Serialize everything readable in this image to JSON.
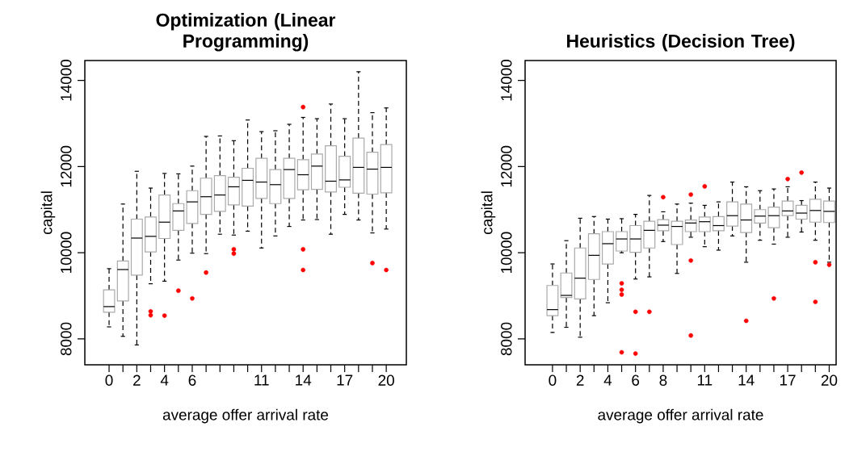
{
  "chart_data": [
    {
      "type": "box",
      "title": "Optimization (Linear Programming)",
      "xlabel": "average offer arrival rate",
      "ylabel": "capital",
      "categories": [
        "0",
        null,
        "2",
        null,
        "4",
        null,
        "6",
        null,
        null,
        null,
        null,
        "11",
        null,
        null,
        "14",
        null,
        null,
        "17",
        null,
        null,
        "20"
      ],
      "ylim": [
        7400,
        14460
      ],
      "yticks": [
        8000,
        10000,
        12000,
        14000
      ],
      "grid": false,
      "series": [
        {
          "color": "#aaaaaa",
          "boxes": [
            {
              "low": 8280,
              "q1": 8620,
              "median": 8750,
              "q3": 9140,
              "high": 9630
            },
            {
              "low": 8060,
              "q1": 8880,
              "median": 9610,
              "q3": 9810,
              "high": 11130
            },
            {
              "low": 7860,
              "q1": 9480,
              "median": 10340,
              "q3": 10780,
              "high": 11890
            },
            {
              "low": 9280,
              "q1": 10020,
              "median": 10380,
              "q3": 10830,
              "high": 11500,
              "outliers": [
                8640,
                8550
              ]
            },
            {
              "low": 9340,
              "q1": 10330,
              "median": 10710,
              "q3": 11340,
              "high": 11840,
              "outliers": [
                8540
              ]
            },
            {
              "low": 9830,
              "q1": 10520,
              "median": 10970,
              "q3": 11140,
              "high": 11830,
              "outliers": [
                9120
              ]
            },
            {
              "low": 9990,
              "q1": 10680,
              "median": 11180,
              "q3": 11440,
              "high": 12010,
              "outliers": [
                8940
              ]
            },
            {
              "low": 9980,
              "q1": 10890,
              "median": 11300,
              "q3": 11730,
              "high": 12700,
              "outliers": [
                9540
              ]
            },
            {
              "low": 10430,
              "q1": 10960,
              "median": 11340,
              "q3": 11790,
              "high": 12710
            },
            {
              "low": 10410,
              "q1": 11110,
              "median": 11530,
              "q3": 11750,
              "high": 12600,
              "outliers": [
                10080,
                9980
              ]
            },
            {
              "low": 10500,
              "q1": 11080,
              "median": 11680,
              "q3": 11960,
              "high": 13080
            },
            {
              "low": 10110,
              "q1": 11260,
              "median": 11640,
              "q3": 12190,
              "high": 12810
            },
            {
              "low": 10390,
              "q1": 11140,
              "median": 11580,
              "q3": 11930,
              "high": 12830
            },
            {
              "low": 10610,
              "q1": 11260,
              "median": 11930,
              "q3": 12190,
              "high": 12980
            },
            {
              "low": 10760,
              "q1": 11460,
              "median": 11810,
              "q3": 12160,
              "high": 13140,
              "outliers": [
                13380,
                10080,
                9600
              ]
            },
            {
              "low": 10770,
              "q1": 11470,
              "median": 12010,
              "q3": 12290,
              "high": 13110
            },
            {
              "low": 10430,
              "q1": 11410,
              "median": 11660,
              "q3": 12480,
              "high": 13450
            },
            {
              "low": 10890,
              "q1": 11520,
              "median": 11690,
              "q3": 12240,
              "high": 13110
            },
            {
              "low": 10760,
              "q1": 11380,
              "median": 11980,
              "q3": 12660,
              "high": 14200
            },
            {
              "low": 10460,
              "q1": 11360,
              "median": 11940,
              "q3": 12330,
              "high": 13250,
              "outliers": [
                9760
              ]
            },
            {
              "low": 10550,
              "q1": 11390,
              "median": 11980,
              "q3": 12510,
              "high": 13360,
              "outliers": [
                9600
              ]
            }
          ]
        }
      ]
    },
    {
      "type": "box",
      "title": "Heuristics (Decision Tree)",
      "xlabel": "average offer arrival rate",
      "ylabel": "capital",
      "categories": [
        "0",
        null,
        "2",
        null,
        "4",
        null,
        "6",
        null,
        "8",
        null,
        null,
        "11",
        null,
        null,
        "14",
        null,
        null,
        "17",
        null,
        null,
        "20"
      ],
      "ylim": [
        7400,
        14460
      ],
      "yticks": [
        8000,
        10000,
        12000,
        14000
      ],
      "grid": false,
      "series": [
        {
          "color": "#aaaaaa",
          "boxes": [
            {
              "low": 8150,
              "q1": 8540,
              "median": 8680,
              "q3": 9240,
              "high": 9740
            },
            {
              "low": 8270,
              "q1": 8960,
              "median": 9010,
              "q3": 9530,
              "high": 10280
            },
            {
              "low": 8040,
              "q1": 8930,
              "median": 9410,
              "q3": 10110,
              "high": 10800
            },
            {
              "low": 8540,
              "q1": 9380,
              "median": 9940,
              "q3": 10440,
              "high": 10840
            },
            {
              "low": 8840,
              "q1": 9740,
              "median": 10210,
              "q3": 10490,
              "high": 10780
            },
            {
              "low": 10000,
              "q1": 10040,
              "median": 10320,
              "q3": 10490,
              "high": 10790,
              "outliers": [
                9290,
                9140,
                9030,
                7690
              ]
            },
            {
              "low": 9390,
              "q1": 10010,
              "median": 10320,
              "q3": 10630,
              "high": 10890,
              "outliers": [
                8630,
                7660
              ]
            },
            {
              "low": 9440,
              "q1": 10110,
              "median": 10520,
              "q3": 10730,
              "high": 11330,
              "outliers": [
                8630
              ]
            },
            {
              "low": 10260,
              "q1": 10510,
              "median": 10640,
              "q3": 10770,
              "high": 10950,
              "outliers": [
                11290
              ]
            },
            {
              "low": 9520,
              "q1": 10190,
              "median": 10610,
              "q3": 10730,
              "high": 11130
            },
            {
              "low": 10360,
              "q1": 10490,
              "median": 10690,
              "q3": 10760,
              "high": 11150,
              "outliers": [
                11350,
                9820,
                8080
              ]
            },
            {
              "low": 10140,
              "q1": 10490,
              "median": 10720,
              "q3": 10830,
              "high": 11100,
              "outliers": [
                11540
              ]
            },
            {
              "low": 10060,
              "q1": 10510,
              "median": 10630,
              "q3": 10840,
              "high": 11180
            },
            {
              "low": 10390,
              "q1": 10620,
              "median": 10860,
              "q3": 11180,
              "high": 11640
            },
            {
              "low": 9780,
              "q1": 10470,
              "median": 10760,
              "q3": 11130,
              "high": 11530,
              "outliers": [
                8420
              ]
            },
            {
              "low": 10290,
              "q1": 10690,
              "median": 10850,
              "q3": 11000,
              "high": 11440
            },
            {
              "low": 10200,
              "q1": 10580,
              "median": 10860,
              "q3": 11060,
              "high": 11480,
              "outliers": [
                8940
              ]
            },
            {
              "low": 10360,
              "q1": 10860,
              "median": 10970,
              "q3": 11200,
              "high": 11530,
              "outliers": [
                11710
              ]
            },
            {
              "low": 10480,
              "q1": 10780,
              "median": 10920,
              "q3": 11100,
              "high": 11210,
              "outliers": [
                11860
              ]
            },
            {
              "low": 10290,
              "q1": 10710,
              "median": 10980,
              "q3": 11240,
              "high": 11640,
              "outliers": [
                9780,
                8860
              ]
            },
            {
              "low": 9780,
              "q1": 10700,
              "median": 10960,
              "q3": 11200,
              "high": 11500,
              "outliers": [
                9720
              ]
            }
          ]
        }
      ]
    }
  ]
}
